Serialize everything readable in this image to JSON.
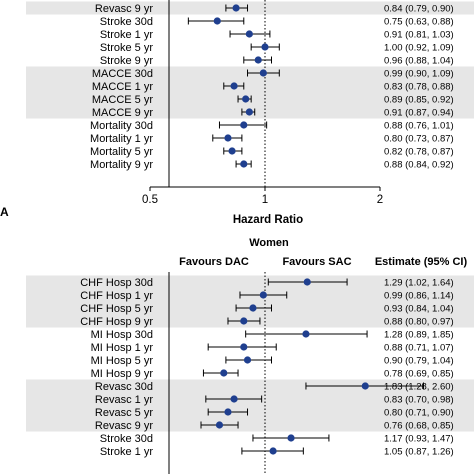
{
  "chart_data": [
    {
      "type": "forest",
      "panel_label": "",
      "title": "",
      "xlabel": "Hazard Ratio",
      "x_scale": "log",
      "xlim": [
        0.5,
        2
      ],
      "x_ticks": [
        "0.5",
        "1",
        "2"
      ],
      "x_tick_values": [
        0.5,
        1,
        2
      ],
      "reference_line": 1,
      "favours_left": "",
      "favours_right": "",
      "estimate_header": "",
      "accent_color": "#1f3f8f",
      "band_color": "#e6e6e6",
      "rows": [
        {
          "label": "Revasc 9 yr",
          "est": 0.84,
          "lo": 0.79,
          "hi": 0.9,
          "text": "0.84 (0.79, 0.90)",
          "shaded": true
        },
        {
          "label": "Stroke 30d",
          "est": 0.75,
          "lo": 0.63,
          "hi": 0.88,
          "text": "0.75 (0.63, 0.88)",
          "shaded": false
        },
        {
          "label": "Stroke 1 yr",
          "est": 0.91,
          "lo": 0.81,
          "hi": 1.03,
          "text": "0.91 (0.81, 1.03)",
          "shaded": false
        },
        {
          "label": "Stroke 5 yr",
          "est": 1.0,
          "lo": 0.92,
          "hi": 1.09,
          "text": "1.00 (0.92, 1.09)",
          "shaded": false
        },
        {
          "label": "Stroke 9 yr",
          "est": 0.96,
          "lo": 0.88,
          "hi": 1.04,
          "text": "0.96 (0.88, 1.04)",
          "shaded": false
        },
        {
          "label": "MACCE 30d",
          "est": 0.99,
          "lo": 0.9,
          "hi": 1.09,
          "text": "0.99 (0.90, 1.09)",
          "shaded": true
        },
        {
          "label": "MACCE 1 yr",
          "est": 0.83,
          "lo": 0.78,
          "hi": 0.88,
          "text": "0.83 (0.78, 0.88)",
          "shaded": true
        },
        {
          "label": "MACCE 5 yr",
          "est": 0.89,
          "lo": 0.85,
          "hi": 0.92,
          "text": "0.89 (0.85, 0.92)",
          "shaded": true
        },
        {
          "label": "MACCE 9 yr",
          "est": 0.91,
          "lo": 0.87,
          "hi": 0.94,
          "text": "0.91 (0.87, 0.94)",
          "shaded": true
        },
        {
          "label": "Mortality 30d",
          "est": 0.88,
          "lo": 0.76,
          "hi": 1.01,
          "text": "0.88 (0.76, 1.01)",
          "shaded": false
        },
        {
          "label": "Mortality 1 yr",
          "est": 0.8,
          "lo": 0.73,
          "hi": 0.87,
          "text": "0.80 (0.73, 0.87)",
          "shaded": false
        },
        {
          "label": "Mortality 5 yr",
          "est": 0.82,
          "lo": 0.78,
          "hi": 0.87,
          "text": "0.82 (0.78, 0.87)",
          "shaded": false
        },
        {
          "label": "Mortality 9 yr",
          "est": 0.88,
          "lo": 0.84,
          "hi": 0.92,
          "text": "0.88 (0.84, 0.92)",
          "shaded": false
        }
      ]
    },
    {
      "type": "forest",
      "panel_label": "A",
      "title": "Women",
      "xlabel": "",
      "x_scale": "log",
      "xlim": [
        0.5,
        2
      ],
      "x_ticks": [],
      "x_tick_values": [],
      "reference_line": 1,
      "favours_left": "Favours DAC",
      "favours_right": "Favours SAC",
      "estimate_header": "Estimate (95% CI)",
      "accent_color": "#1f3f8f",
      "band_color": "#e6e6e6",
      "rows": [
        {
          "label": "CHF Hosp 30d",
          "est": 1.29,
          "lo": 1.02,
          "hi": 1.64,
          "text": "1.29 (1.02, 1.64)",
          "shaded": true
        },
        {
          "label": "CHF Hosp 1 yr",
          "est": 0.99,
          "lo": 0.86,
          "hi": 1.14,
          "text": "0.99 (0.86, 1.14)",
          "shaded": true
        },
        {
          "label": "CHF Hosp 5 yr",
          "est": 0.93,
          "lo": 0.84,
          "hi": 1.04,
          "text": "0.93 (0.84, 1.04)",
          "shaded": true
        },
        {
          "label": "CHF Hosp 9 yr",
          "est": 0.88,
          "lo": 0.8,
          "hi": 0.97,
          "text": "0.88 (0.80, 0.97)",
          "shaded": true
        },
        {
          "label": "MI Hosp 30d",
          "est": 1.28,
          "lo": 0.89,
          "hi": 1.85,
          "text": "1.28 (0.89, 1.85)",
          "shaded": false
        },
        {
          "label": "MI Hosp 1 yr",
          "est": 0.88,
          "lo": 0.71,
          "hi": 1.07,
          "text": "0.88 (0.71, 1.07)",
          "shaded": false
        },
        {
          "label": "MI Hosp 5 yr",
          "est": 0.9,
          "lo": 0.79,
          "hi": 1.04,
          "text": "0.90 (0.79, 1.04)",
          "shaded": false
        },
        {
          "label": "MI Hosp 9 yr",
          "est": 0.78,
          "lo": 0.69,
          "hi": 0.85,
          "text": "0.78 (0.69, 0.85)",
          "shaded": false
        },
        {
          "label": "Revasc 30d",
          "est": 1.83,
          "lo": 1.28,
          "hi": 2.6,
          "text": "1.83 (1.28, 2.60)",
          "shaded": true
        },
        {
          "label": "Revasc 1 yr",
          "est": 0.83,
          "lo": 0.7,
          "hi": 0.98,
          "text": "0.83 (0.70, 0.98)",
          "shaded": true
        },
        {
          "label": "Revasc 5 yr",
          "est": 0.8,
          "lo": 0.71,
          "hi": 0.9,
          "text": "0.80 (0.71, 0.90)",
          "shaded": true
        },
        {
          "label": "Revasc 9 yr",
          "est": 0.76,
          "lo": 0.68,
          "hi": 0.85,
          "text": "0.76 (0.68, 0.85)",
          "shaded": true
        },
        {
          "label": "Stroke 30d",
          "est": 1.17,
          "lo": 0.93,
          "hi": 1.47,
          "text": "1.17 (0.93, 1.47)",
          "shaded": false
        },
        {
          "label": "Stroke 1 yr",
          "est": 1.05,
          "lo": 0.87,
          "hi": 1.26,
          "text": "1.05 (0.87, 1.26)",
          "shaded": false
        }
      ]
    }
  ]
}
